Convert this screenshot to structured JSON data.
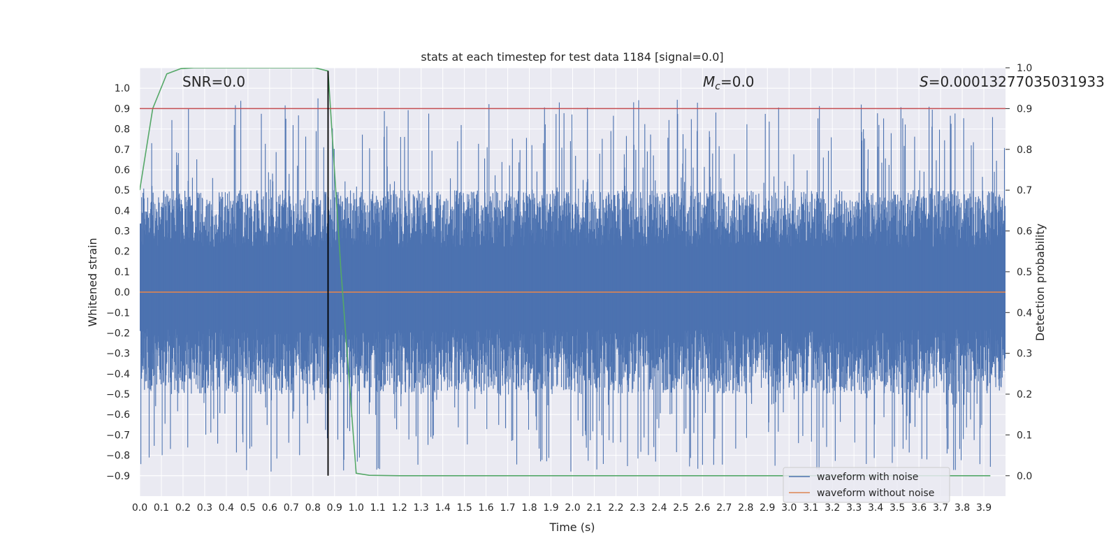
{
  "chart_data": {
    "type": "line",
    "title": "stats at each timestep for test data 1184 [signal=0.0]",
    "xlabel": "Time (s)",
    "ylabel": "Whitened strain",
    "y2label": "Detection probability",
    "xlim": [
      0.0,
      4.0
    ],
    "ylim": [
      -1.0,
      1.1
    ],
    "y2lim": [
      -0.05,
      1.0
    ],
    "xticks": [
      "0.0",
      "0.1",
      "0.2",
      "0.3",
      "0.4",
      "0.5",
      "0.6",
      "0.7",
      "0.8",
      "0.9",
      "1.0",
      "1.1",
      "1.2",
      "1.3",
      "1.4",
      "1.5",
      "1.6",
      "1.7",
      "1.8",
      "1.9",
      "2.0",
      "2.1",
      "2.2",
      "2.3",
      "2.4",
      "2.5",
      "2.6",
      "2.7",
      "2.8",
      "2.9",
      "3.0",
      "3.1",
      "3.2",
      "3.3",
      "3.4",
      "3.5",
      "3.6",
      "3.7",
      "3.8",
      "3.9"
    ],
    "yticks": [
      "1.0",
      "0.9",
      "0.8",
      "0.7",
      "0.6",
      "0.5",
      "0.4",
      "0.3",
      "0.2",
      "0.1",
      "0.0",
      "−0.1",
      "−0.2",
      "−0.3",
      "−0.4",
      "−0.5",
      "−0.6",
      "−0.7",
      "−0.8",
      "−0.9"
    ],
    "y2ticks": [
      "1.0",
      "0.9",
      "0.8",
      "0.7",
      "0.6",
      "0.5",
      "0.4",
      "0.3",
      "0.2",
      "0.1",
      "0.0"
    ],
    "grid": true,
    "legend_position": "bottom-right",
    "annotations": {
      "snr": "SNR=0.0",
      "mc_symbol": "M",
      "mc_sub": "c",
      "mc_value": "=0.0",
      "s_symbol": "S",
      "s_value": "=0.00013277035031933"
    },
    "series": [
      {
        "name": "waveform with noise",
        "color": "#4c72b0",
        "axis": "left",
        "note": "dense noise trace, approx. range -0.9 to 1.0",
        "envelope_samples": 320
      },
      {
        "name": "waveform without noise",
        "color": "#dd8452",
        "axis": "left",
        "x": [
          0.0,
          4.0
        ],
        "y": [
          0.0,
          0.0
        ]
      },
      {
        "axis": "right",
        "color": "#55a868",
        "x": [
          0.0,
          0.06,
          0.125,
          0.19,
          0.25,
          0.5,
          0.81,
          0.87,
          0.93,
          1.0,
          1.06,
          1.2,
          2.0,
          3.0,
          3.93
        ],
        "y": [
          0.7,
          0.9,
          0.985,
          0.998,
          1.0,
          1.0,
          1.0,
          0.992,
          0.5,
          0.006,
          0.001,
          0.0,
          0.0,
          0.0,
          0.0
        ]
      },
      {
        "axis": "right",
        "color": "#c44e52",
        "x": [
          0.0,
          4.0
        ],
        "y": [
          0.9,
          0.9
        ]
      },
      {
        "axis": "right",
        "color": "#000000",
        "x": [
          0.87,
          0.87
        ],
        "y": [
          0.0,
          0.992
        ]
      }
    ]
  }
}
